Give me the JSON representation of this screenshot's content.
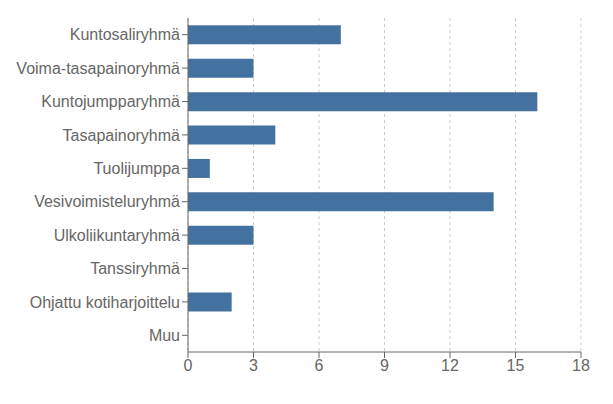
{
  "chart_data": {
    "type": "bar",
    "orientation": "horizontal",
    "categories": [
      "Muu",
      "Ohjattu kotiharjoittelu",
      "Tanssiryhmä",
      "Ulkoliikuntaryhmä",
      "Vesivoimisteluryhmä",
      "Tuolijumppa",
      "Tasapainoryhmä",
      "Kuntojumpparyhmä",
      "Voima-tasapainoryhmä",
      "Kuntosaliryhmä"
    ],
    "values": [
      0,
      2,
      0,
      3,
      14,
      1,
      4,
      16,
      3,
      7
    ],
    "color": "#4472a0",
    "xlim": [
      0,
      18
    ],
    "xticks": [
      0,
      3,
      6,
      9,
      12,
      15,
      18
    ],
    "grid": true
  }
}
